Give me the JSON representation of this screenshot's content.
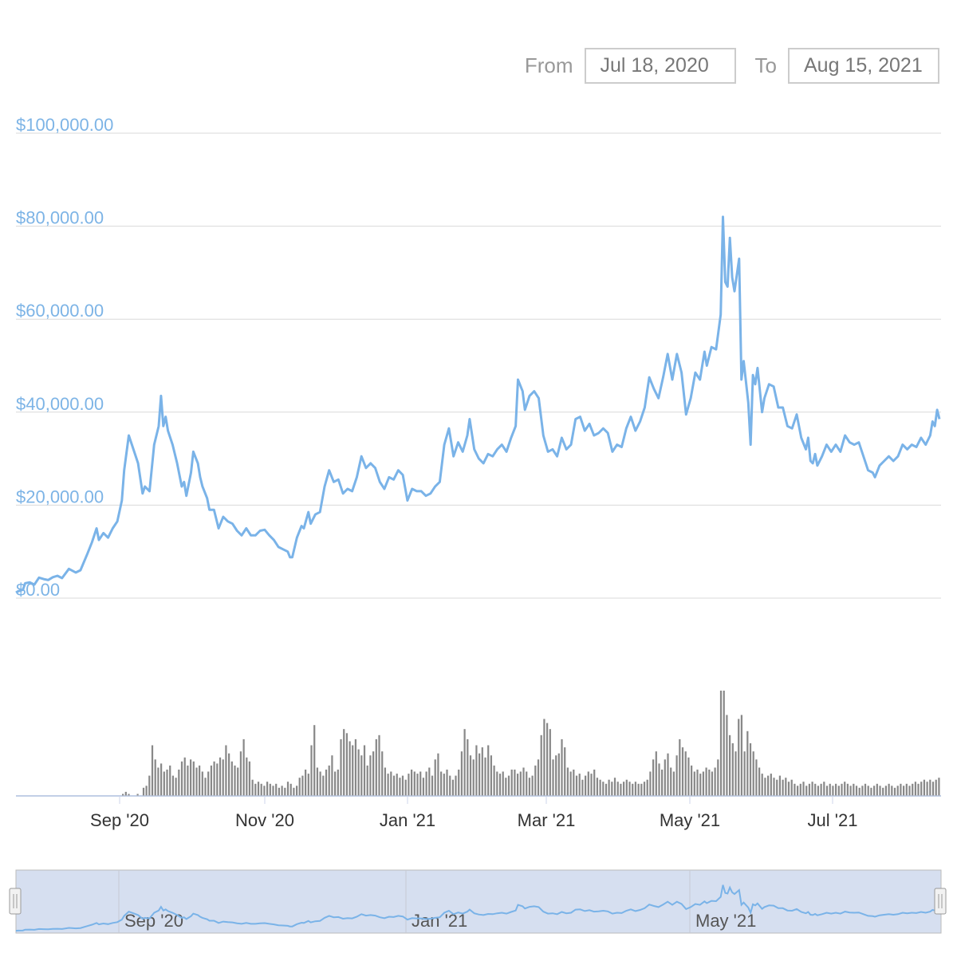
{
  "range_selector": {
    "from_label": "From",
    "from_value": "Jul 18, 2020",
    "to_label": "To",
    "to_value": "Aug 15, 2021"
  },
  "colors": {
    "line": "#7ab3e8",
    "volume": "#888888",
    "grid": "#d9d9d9",
    "navigator_fill": "#d6dff0"
  },
  "chart_data": {
    "type": "line",
    "title": "",
    "xlabel": "",
    "ylabel": "",
    "ylim": [
      0,
      100000
    ],
    "y_ticks": [
      "$0.00",
      "$20,000.00",
      "$40,000.00",
      "$60,000.00",
      "$80,000.00",
      "$100,000.00"
    ],
    "x_ticks": [
      "Sep '20",
      "Nov '20",
      "Jan '21",
      "Mar '21",
      "May '21",
      "Jul '21"
    ],
    "navigator_ticks": [
      "Sep '20",
      "Jan '21",
      "May '21"
    ],
    "series": [
      {
        "values": [
          [
            0,
            1200
          ],
          [
            1,
            1500
          ],
          [
            3,
            1800
          ],
          [
            4,
            3200
          ],
          [
            6,
            3400
          ],
          [
            8,
            2900
          ],
          [
            10,
            4400
          ],
          [
            12,
            4100
          ],
          [
            14,
            3900
          ],
          [
            16,
            4500
          ],
          [
            18,
            4800
          ],
          [
            20,
            4300
          ],
          [
            23,
            6300
          ],
          [
            26,
            5500
          ],
          [
            28,
            6000
          ],
          [
            31,
            9500
          ],
          [
            33,
            12000
          ],
          [
            35,
            15000
          ],
          [
            36,
            12500
          ],
          [
            38,
            14000
          ],
          [
            40,
            13000
          ],
          [
            42,
            15000
          ],
          [
            44,
            16500
          ],
          [
            46,
            21000
          ],
          [
            47,
            27500
          ],
          [
            49,
            35000
          ],
          [
            51,
            32000
          ],
          [
            53,
            29000
          ],
          [
            55,
            22500
          ],
          [
            56,
            24000
          ],
          [
            58,
            23000
          ],
          [
            60,
            33000
          ],
          [
            62,
            37000
          ],
          [
            63,
            43500
          ],
          [
            64,
            37000
          ],
          [
            65,
            39000
          ],
          [
            66,
            36000
          ],
          [
            68,
            33000
          ],
          [
            70,
            29000
          ],
          [
            72,
            24000
          ],
          [
            73,
            25000
          ],
          [
            74,
            22000
          ],
          [
            76,
            27000
          ],
          [
            77,
            31500
          ],
          [
            79,
            29000
          ],
          [
            80,
            26000
          ],
          [
            81,
            24000
          ],
          [
            83,
            21500
          ],
          [
            84,
            19000
          ],
          [
            86,
            19000
          ],
          [
            88,
            15000
          ],
          [
            90,
            17500
          ],
          [
            92,
            16500
          ],
          [
            94,
            16000
          ],
          [
            96,
            14500
          ],
          [
            98,
            13500
          ],
          [
            100,
            15000
          ],
          [
            102,
            13500
          ],
          [
            104,
            13500
          ],
          [
            106,
            14500
          ],
          [
            108,
            14700
          ],
          [
            110,
            13500
          ],
          [
            112,
            12500
          ],
          [
            114,
            11000
          ],
          [
            116,
            10500
          ],
          [
            118,
            10000
          ],
          [
            119,
            8800
          ],
          [
            120,
            8800
          ],
          [
            122,
            13000
          ],
          [
            124,
            15500
          ],
          [
            125,
            15000
          ],
          [
            127,
            18500
          ],
          [
            128,
            16000
          ],
          [
            130,
            18000
          ],
          [
            132,
            18500
          ],
          [
            134,
            24000
          ],
          [
            136,
            27500
          ],
          [
            138,
            25000
          ],
          [
            140,
            25500
          ],
          [
            142,
            22500
          ],
          [
            144,
            23500
          ],
          [
            146,
            23000
          ],
          [
            148,
            26000
          ],
          [
            150,
            30500
          ],
          [
            152,
            28000
          ],
          [
            154,
            29000
          ],
          [
            156,
            28000
          ],
          [
            158,
            25000
          ],
          [
            160,
            23500
          ],
          [
            162,
            26000
          ],
          [
            164,
            25500
          ],
          [
            166,
            27500
          ],
          [
            168,
            26500
          ],
          [
            170,
            21000
          ],
          [
            172,
            23500
          ],
          [
            174,
            23000
          ],
          [
            176,
            23000
          ],
          [
            178,
            22000
          ],
          [
            180,
            22500
          ],
          [
            182,
            24000
          ],
          [
            184,
            25000
          ],
          [
            186,
            33000
          ],
          [
            188,
            36500
          ],
          [
            190,
            30500
          ],
          [
            192,
            33500
          ],
          [
            194,
            31500
          ],
          [
            196,
            35000
          ],
          [
            197,
            38500
          ],
          [
            199,
            32000
          ],
          [
            201,
            30000
          ],
          [
            203,
            29000
          ],
          [
            205,
            31000
          ],
          [
            207,
            30500
          ],
          [
            209,
            32000
          ],
          [
            211,
            33000
          ],
          [
            213,
            31500
          ],
          [
            215,
            34500
          ],
          [
            217,
            37000
          ],
          [
            218,
            47000
          ],
          [
            220,
            44500
          ],
          [
            221,
            40500
          ],
          [
            223,
            43500
          ],
          [
            225,
            44500
          ],
          [
            227,
            43000
          ],
          [
            229,
            35000
          ],
          [
            231,
            31500
          ],
          [
            233,
            32000
          ],
          [
            235,
            30500
          ],
          [
            237,
            34500
          ],
          [
            239,
            32000
          ],
          [
            241,
            33000
          ],
          [
            243,
            38500
          ],
          [
            245,
            39000
          ],
          [
            247,
            36000
          ],
          [
            249,
            37500
          ],
          [
            251,
            35000
          ],
          [
            253,
            35500
          ],
          [
            255,
            36500
          ],
          [
            257,
            35500
          ],
          [
            259,
            31500
          ],
          [
            261,
            33000
          ],
          [
            263,
            32500
          ],
          [
            265,
            36500
          ],
          [
            267,
            39000
          ],
          [
            269,
            36000
          ],
          [
            271,
            38000
          ],
          [
            273,
            41000
          ],
          [
            275,
            47500
          ],
          [
            277,
            45000
          ],
          [
            279,
            43000
          ],
          [
            281,
            47500
          ],
          [
            283,
            52500
          ],
          [
            285,
            47000
          ],
          [
            287,
            52500
          ],
          [
            289,
            48500
          ],
          [
            291,
            39500
          ],
          [
            293,
            43000
          ],
          [
            295,
            48500
          ],
          [
            297,
            47000
          ],
          [
            299,
            53000
          ],
          [
            300,
            50000
          ],
          [
            302,
            54000
          ],
          [
            304,
            53500
          ],
          [
            306,
            61000
          ],
          [
            307,
            82000
          ],
          [
            308,
            68000
          ],
          [
            309,
            67000
          ],
          [
            310,
            77500
          ],
          [
            311,
            69000
          ],
          [
            312,
            66000
          ],
          [
            314,
            73000
          ],
          [
            315,
            47000
          ],
          [
            316,
            51000
          ],
          [
            318,
            42000
          ],
          [
            319,
            33000
          ],
          [
            320,
            48000
          ],
          [
            321,
            46000
          ],
          [
            322,
            49500
          ],
          [
            324,
            40000
          ],
          [
            325,
            43000
          ],
          [
            327,
            46000
          ],
          [
            329,
            45500
          ],
          [
            331,
            41000
          ],
          [
            333,
            41000
          ],
          [
            335,
            37000
          ],
          [
            337,
            36500
          ],
          [
            339,
            39500
          ],
          [
            341,
            34500
          ],
          [
            343,
            32000
          ],
          [
            344,
            34500
          ],
          [
            345,
            29500
          ],
          [
            346,
            29000
          ],
          [
            347,
            31000
          ],
          [
            348,
            28500
          ],
          [
            350,
            30500
          ],
          [
            352,
            33000
          ],
          [
            354,
            31500
          ],
          [
            356,
            33000
          ],
          [
            358,
            31500
          ],
          [
            360,
            35000
          ],
          [
            362,
            33500
          ],
          [
            364,
            33000
          ],
          [
            366,
            33500
          ],
          [
            368,
            30500
          ],
          [
            370,
            27500
          ],
          [
            372,
            27000
          ],
          [
            373,
            26000
          ],
          [
            375,
            28500
          ],
          [
            377,
            29500
          ],
          [
            379,
            30500
          ],
          [
            381,
            29500
          ],
          [
            383,
            30500
          ],
          [
            385,
            33000
          ],
          [
            387,
            32000
          ],
          [
            389,
            33000
          ],
          [
            391,
            32500
          ],
          [
            393,
            34500
          ],
          [
            395,
            33000
          ],
          [
            397,
            35000
          ],
          [
            398,
            38000
          ],
          [
            399,
            37000
          ],
          [
            400,
            40500
          ],
          [
            401,
            38500
          ]
        ]
      }
    ],
    "volume": [
      0,
      0,
      0,
      0,
      0,
      0,
      0,
      0,
      0,
      0,
      0,
      0,
      0,
      0,
      0,
      0,
      0,
      0,
      0,
      0,
      0,
      0,
      0,
      0,
      0,
      0,
      0,
      0,
      0,
      0,
      0,
      0,
      0,
      0,
      0,
      0,
      1,
      2,
      1,
      0,
      0,
      1,
      0,
      4,
      5,
      10,
      25,
      18,
      14,
      16,
      12,
      13,
      15,
      10,
      9,
      13,
      17,
      19,
      15,
      18,
      17,
      14,
      15,
      12,
      9,
      12,
      15,
      17,
      16,
      19,
      18,
      25,
      21,
      17,
      15,
      14,
      22,
      28,
      19,
      17,
      8,
      6,
      7,
      6,
      5,
      7,
      6,
      5,
      6,
      4,
      5,
      4,
      7,
      6,
      4,
      5,
      9,
      10,
      13,
      11,
      25,
      35,
      14,
      12,
      10,
      13,
      15,
      20,
      12,
      13,
      28,
      33,
      31,
      27,
      25,
      28,
      23,
      20,
      25,
      15,
      20,
      22,
      28,
      30,
      22,
      14,
      11,
      12,
      10,
      11,
      9,
      10,
      8,
      11,
      13,
      12,
      11,
      12,
      9,
      12,
      14,
      10,
      18,
      21,
      12,
      11,
      13,
      10,
      8,
      10,
      13,
      22,
      33,
      28,
      20,
      18,
      25,
      21,
      24,
      19,
      25,
      20,
      15,
      12,
      11,
      12,
      9,
      10,
      13,
      13,
      11,
      12,
      14,
      12,
      9,
      10,
      15,
      18,
      30,
      38,
      36,
      33,
      18,
      20,
      21,
      28,
      24,
      14,
      12,
      13,
      10,
      11,
      8,
      10,
      12,
      11,
      13,
      9,
      8,
      7,
      6,
      8,
      7,
      9,
      7,
      6,
      7,
      8,
      7,
      6,
      7,
      6,
      6,
      7,
      8,
      12,
      18,
      22,
      16,
      13,
      18,
      21,
      14,
      12,
      20,
      28,
      24,
      22,
      19,
      15,
      12,
      13,
      11,
      12,
      14,
      13,
      12,
      14,
      18,
      52,
      52,
      40,
      30,
      26,
      22,
      38,
      40,
      22,
      32,
      26,
      22,
      18,
      14,
      11,
      9,
      10,
      11,
      9,
      8,
      10,
      8,
      9,
      7,
      8,
      6,
      5,
      6,
      7,
      5,
      6,
      7,
      6,
      5,
      6,
      7,
      5,
      6,
      5,
      6,
      5,
      6,
      7,
      6,
      5,
      6,
      5,
      4,
      5,
      6,
      5,
      4,
      5,
      6,
      5,
      4,
      5,
      6,
      5,
      4,
      5,
      6,
      5,
      6,
      5,
      6,
      7,
      6,
      7,
      8,
      7,
      8,
      7,
      8,
      9
    ]
  }
}
